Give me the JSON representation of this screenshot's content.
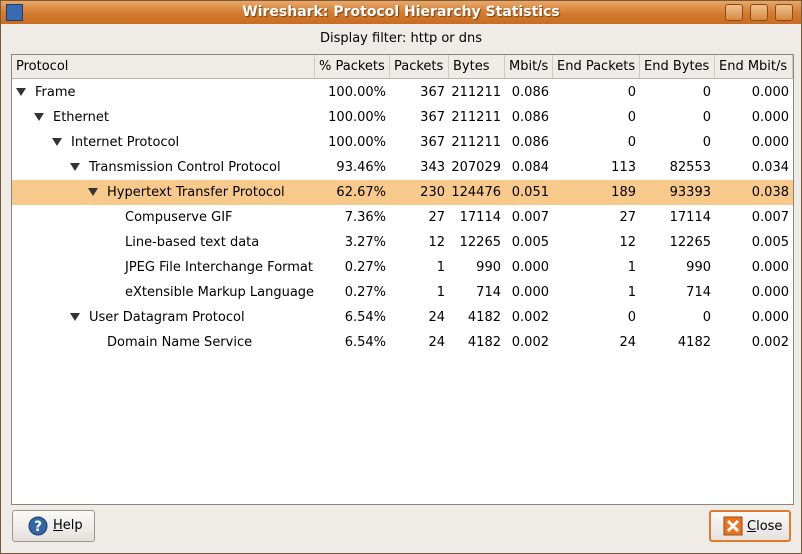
{
  "window": {
    "title": "Wireshark: Protocol Hierarchy Statistics"
  },
  "filter": "Display filter: http or dns",
  "table": {
    "columns": [
      "Protocol",
      "% Packets",
      "Packets",
      "Bytes",
      "Mbit/s",
      "End Packets",
      "End Bytes",
      "End Mbit/s"
    ],
    "rows": [
      {
        "cells": [
          "Frame",
          "100.00%",
          "367",
          "211211",
          "0.086",
          "0",
          "0",
          "0.000"
        ],
        "children": [
          {
            "cells": [
              "Ethernet",
              "100.00%",
              "367",
              "211211",
              "0.086",
              "0",
              "0",
              "0.000"
            ],
            "children": [
              {
                "cells": [
                  "Internet Protocol",
                  "100.00%",
                  "367",
                  "211211",
                  "0.086",
                  "0",
                  "0",
                  "0.000"
                ],
                "children": [
                  {
                    "cells": [
                      "Transmission Control Protocol",
                      "93.46%",
                      "343",
                      "207029",
                      "0.084",
                      "113",
                      "82553",
                      "0.034"
                    ],
                    "children": [
                      {
                        "cells": [
                          "Hypertext Transfer Protocol",
                          "62.67%",
                          "230",
                          "124476",
                          "0.051",
                          "189",
                          "93393",
                          "0.038"
                        ],
                        "selected": true,
                        "children": [
                          {
                            "cells": [
                              "Compuserve GIF",
                              "7.36%",
                              "27",
                              "17114",
                              "0.007",
                              "27",
                              "17114",
                              "0.007"
                            ]
                          },
                          {
                            "cells": [
                              "Line-based text data",
                              "3.27%",
                              "12",
                              "12265",
                              "0.005",
                              "12",
                              "12265",
                              "0.005"
                            ]
                          },
                          {
                            "cells": [
                              "JPEG File Interchange Format",
                              "0.27%",
                              "1",
                              "990",
                              "0.000",
                              "1",
                              "990",
                              "0.000"
                            ]
                          },
                          {
                            "cells": [
                              "eXtensible Markup Language",
                              "0.27%",
                              "1",
                              "714",
                              "0.000",
                              "1",
                              "714",
                              "0.000"
                            ]
                          }
                        ]
                      }
                    ]
                  },
                  {
                    "cells": [
                      "User Datagram Protocol",
                      "6.54%",
                      "24",
                      "4182",
                      "0.002",
                      "0",
                      "0",
                      "0.000"
                    ],
                    "children": [
                      {
                        "cells": [
                          "Domain Name Service",
                          "6.54%",
                          "24",
                          "4182",
                          "0.002",
                          "24",
                          "4182",
                          "0.002"
                        ]
                      }
                    ]
                  }
                ]
              }
            ]
          }
        ]
      }
    ]
  },
  "buttons": {
    "help": "Help",
    "close": "Close"
  }
}
